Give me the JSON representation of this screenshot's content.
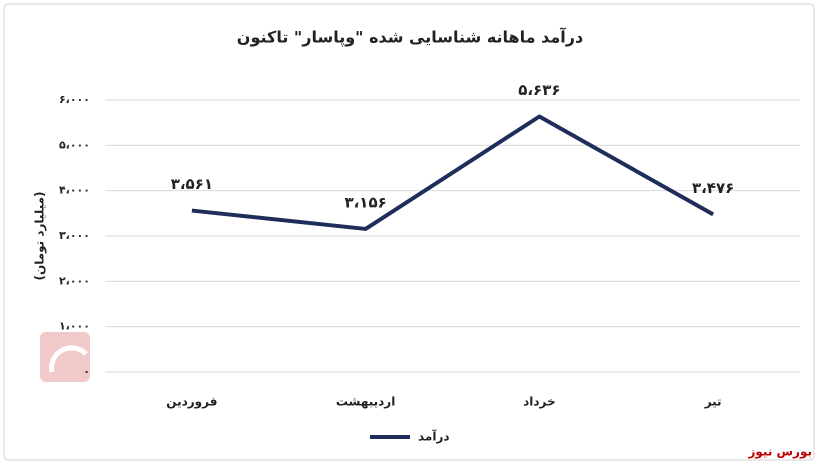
{
  "chart_data": {
    "type": "line",
    "title": "درآمد ماهانه شناسایی شده \"وپاسار\" تاکنون",
    "y_label": "(میلیارد تومان)",
    "categories": [
      "فروردین",
      "اردیبهشت",
      "خرداد",
      "تیر"
    ],
    "series": [
      {
        "name": "درآمد",
        "color": "#1f2d5a",
        "values": [
          3561,
          3156,
          5636,
          3476
        ],
        "value_labels": [
          "۳،۵۶۱",
          "۳،۱۵۶",
          "۵،۶۳۶",
          "۳،۴۷۶"
        ]
      }
    ],
    "ylim": [
      0,
      6000
    ],
    "yticks": [
      {
        "value": 0,
        "label": "۰"
      },
      {
        "value": 1000,
        "label": "۱،۰۰۰"
      },
      {
        "value": 2000,
        "label": "۲،۰۰۰"
      },
      {
        "value": 3000,
        "label": "۳،۰۰۰"
      },
      {
        "value": 4000,
        "label": "۴،۰۰۰"
      },
      {
        "value": 5000,
        "label": "۵،۰۰۰"
      },
      {
        "value": 6000,
        "label": "۶،۰۰۰"
      }
    ],
    "grid": true,
    "legend": "bottom",
    "source": "بورس نیوز"
  }
}
